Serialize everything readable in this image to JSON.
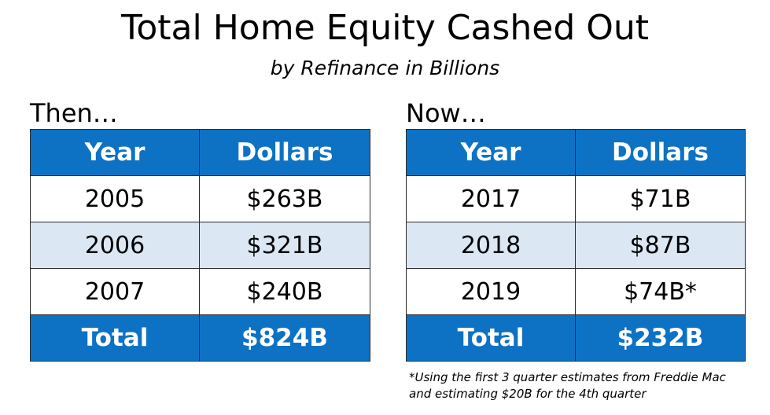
{
  "title": "Total Home Equity Cashed Out",
  "subtitle": "by Refinance in Billions",
  "then_table": {
    "heading": "Then…",
    "col_year": "Year",
    "col_dollars": "Dollars",
    "rows": [
      {
        "year": "2005",
        "dollars": "$263B"
      },
      {
        "year": "2006",
        "dollars": "$321B"
      },
      {
        "year": "2007",
        "dollars": "$240B"
      }
    ],
    "total_label": "Total",
    "total_value": "$824B"
  },
  "now_table": {
    "heading": "Now…",
    "col_year": "Year",
    "col_dollars": "Dollars",
    "rows": [
      {
        "year": "2017",
        "dollars": "$71B"
      },
      {
        "year": "2018",
        "dollars": "$87B"
      },
      {
        "year": "2019",
        "dollars": "$74B*"
      }
    ],
    "total_label": "Total",
    "total_value": "$232B"
  },
  "footnote_line1": "*Using the first 3 quarter estimates from Freddie Mac",
  "footnote_line2": "and estimating $20B for the 4th quarter",
  "colors": {
    "header_blue": "#0e72c4",
    "row_shade": "#dce7f4"
  },
  "chart_data": [
    {
      "type": "table",
      "title": "Then…",
      "columns": [
        "Year",
        "Dollars"
      ],
      "rows": [
        [
          "2005",
          263
        ],
        [
          "2006",
          321
        ],
        [
          "2007",
          240
        ]
      ],
      "total": 824
    },
    {
      "type": "table",
      "title": "Now…",
      "columns": [
        "Year",
        "Dollars"
      ],
      "rows": [
        [
          "2017",
          71
        ],
        [
          "2018",
          87
        ],
        [
          "2019",
          74
        ]
      ],
      "total": 232
    }
  ]
}
